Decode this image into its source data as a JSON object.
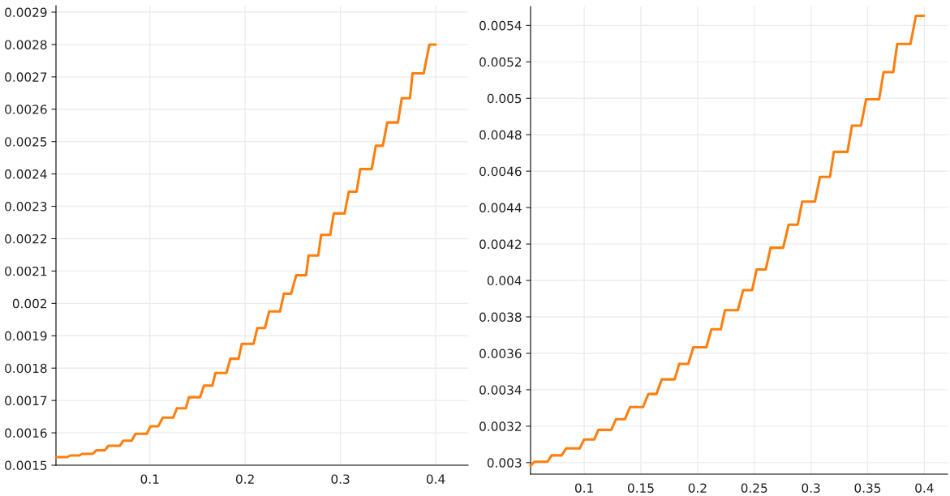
{
  "chart_data": [
    {
      "type": "line",
      "xlim": [
        0.0015,
        0.434
      ],
      "ylim": [
        0.0015,
        0.00292
      ],
      "xticks": [
        0.1,
        0.2,
        0.3,
        0.4
      ],
      "yticks": [
        0.0015,
        0.0016,
        0.0017,
        0.0018,
        0.0019,
        0.002,
        0.0021,
        0.0022,
        0.0023,
        0.0024,
        0.0025,
        0.0026,
        0.0027,
        0.0028,
        0.0029
      ],
      "grid": true,
      "marker": "none",
      "line_style": "solid",
      "series": [
        {
          "color": "#ff7f0e",
          "x": [
            0.0016,
            0.0133,
            0.0164,
            0.0259,
            0.029,
            0.0401,
            0.0438,
            0.0527,
            0.0565,
            0.0685,
            0.0722,
            0.0811,
            0.0849,
            0.0968,
            0.1006,
            0.1088,
            0.1136,
            0.1246,
            0.1284,
            0.1379,
            0.141,
            0.1527,
            0.1568,
            0.1656,
            0.1688,
            0.1804,
            0.1845,
            0.1931,
            0.1965,
            0.2088,
            0.2129,
            0.2208,
            0.2252,
            0.2366,
            0.2407,
            0.2483,
            0.2536,
            0.264,
            0.2666,
            0.2767,
            0.2798,
            0.2893,
            0.2931,
            0.3044,
            0.3088,
            0.317,
            0.3208,
            0.3328,
            0.3372,
            0.3445,
            0.3492,
            0.3603,
            0.3644,
            0.373,
            0.3757,
            0.3874,
            0.3934,
            0.4
          ],
          "values": [
            0.001525,
            0.001525,
            0.00153,
            0.00153,
            0.001535,
            0.001535,
            0.001546,
            0.001546,
            0.00156,
            0.00156,
            0.001576,
            0.001576,
            0.001597,
            0.001597,
            0.00162,
            0.00162,
            0.001647,
            0.001647,
            0.001676,
            0.001676,
            0.00171,
            0.00171,
            0.001746,
            0.001746,
            0.001785,
            0.001785,
            0.001829,
            0.001829,
            0.001875,
            0.001875,
            0.001924,
            0.001924,
            0.001975,
            0.001975,
            0.00203,
            0.00203,
            0.002087,
            0.002087,
            0.002148,
            0.002148,
            0.002212,
            0.002212,
            0.002278,
            0.002278,
            0.002345,
            0.002345,
            0.002415,
            0.002415,
            0.002487,
            0.002487,
            0.002559,
            0.002559,
            0.002634,
            0.002634,
            0.002711,
            0.002711,
            0.0028,
            0.0028
          ]
        }
      ]
    },
    {
      "type": "line",
      "xlim": [
        0.0527,
        0.4205
      ],
      "ylim": [
        0.002937,
        0.005504
      ],
      "xticks": [
        0.1,
        0.15,
        0.2,
        0.25,
        0.3,
        0.35,
        0.4
      ],
      "yticks": [
        0.003,
        0.0032,
        0.0034,
        0.0036,
        0.0038,
        0.004,
        0.0042,
        0.0044,
        0.0046,
        0.0048,
        0.005,
        0.0052,
        0.0054
      ],
      "grid": true,
      "marker": "none",
      "line_style": "solid",
      "series": [
        {
          "color": "#ff7f0e",
          "x": [
            0.0527,
            0.0561,
            0.0676,
            0.0713,
            0.0801,
            0.084,
            0.096,
            0.1,
            0.1088,
            0.1125,
            0.1239,
            0.128,
            0.1359,
            0.1404,
            0.1519,
            0.1566,
            0.1638,
            0.1684,
            0.1798,
            0.1838,
            0.1918,
            0.1963,
            0.2077,
            0.2122,
            0.2205,
            0.2242,
            0.2356,
            0.2402,
            0.2481,
            0.2521,
            0.2601,
            0.2644,
            0.2755,
            0.2803,
            0.2883,
            0.2923,
            0.3035,
            0.308,
            0.3168,
            0.3202,
            0.3322,
            0.3362,
            0.3441,
            0.3487,
            0.3601,
            0.3641,
            0.3726,
            0.3761,
            0.3878,
            0.3926,
            0.3997
          ],
          "values": [
            0.002983,
            0.003005,
            0.003005,
            0.00304,
            0.00304,
            0.003078,
            0.003078,
            0.003127,
            0.003127,
            0.00318,
            0.00318,
            0.003238,
            0.003238,
            0.003305,
            0.003305,
            0.003377,
            0.003377,
            0.003457,
            0.003457,
            0.003542,
            0.003542,
            0.003633,
            0.003633,
            0.003732,
            0.003732,
            0.003837,
            0.003837,
            0.003947,
            0.003947,
            0.00406,
            0.00406,
            0.00418,
            0.00418,
            0.004306,
            0.004306,
            0.004433,
            0.004433,
            0.004569,
            0.004569,
            0.004706,
            0.004706,
            0.00485,
            0.00485,
            0.004995,
            0.004995,
            0.005144,
            0.005144,
            0.005298,
            0.005298,
            0.005453,
            0.005453
          ]
        }
      ]
    }
  ]
}
